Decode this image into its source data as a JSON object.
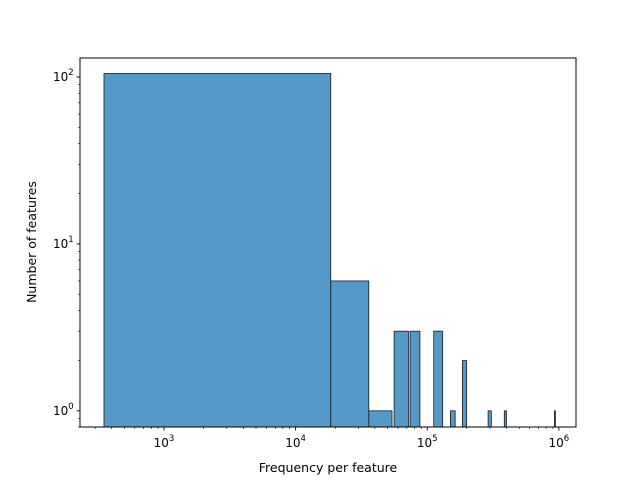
{
  "chart_data": {
    "type": "bar",
    "title": "",
    "xlabel": "Frequency per feature",
    "ylabel": "Number of features",
    "x_scale": "log",
    "y_scale": "log",
    "xlim": [
      230,
      1350000
    ],
    "ylim": [
      0.8,
      130
    ],
    "grid": false,
    "x_ticks": [
      {
        "value": 1000,
        "base": "10",
        "exp": "3"
      },
      {
        "value": 10000,
        "base": "10",
        "exp": "4"
      },
      {
        "value": 100000,
        "base": "10",
        "exp": "5"
      },
      {
        "value": 1000000,
        "base": "10",
        "exp": "6"
      }
    ],
    "y_ticks": [
      {
        "value": 1,
        "base": "10",
        "exp": "0"
      },
      {
        "value": 10,
        "base": "10",
        "exp": "1"
      },
      {
        "value": 100,
        "base": "10",
        "exp": "2"
      }
    ],
    "bins": [
      {
        "x0": 350,
        "x1": 18500,
        "count": 105
      },
      {
        "x0": 18500,
        "x1": 36000,
        "count": 6
      },
      {
        "x0": 36000,
        "x1": 54000,
        "count": 1
      },
      {
        "x0": 56000,
        "x1": 72000,
        "count": 3
      },
      {
        "x0": 74000,
        "x1": 88000,
        "count": 3
      },
      {
        "x0": 112000,
        "x1": 131000,
        "count": 3
      },
      {
        "x0": 150000,
        "x1": 163000,
        "count": 1
      },
      {
        "x0": 185000,
        "x1": 199000,
        "count": 2
      },
      {
        "x0": 290000,
        "x1": 307000,
        "count": 1
      },
      {
        "x0": 385000,
        "x1": 400000,
        "count": 1
      },
      {
        "x0": 925000,
        "x1": 940000,
        "count": 1
      }
    ],
    "colors": {
      "bar_fill": "#5499c7",
      "bar_edge": "#1a1a1a",
      "axis": "#000000"
    }
  }
}
